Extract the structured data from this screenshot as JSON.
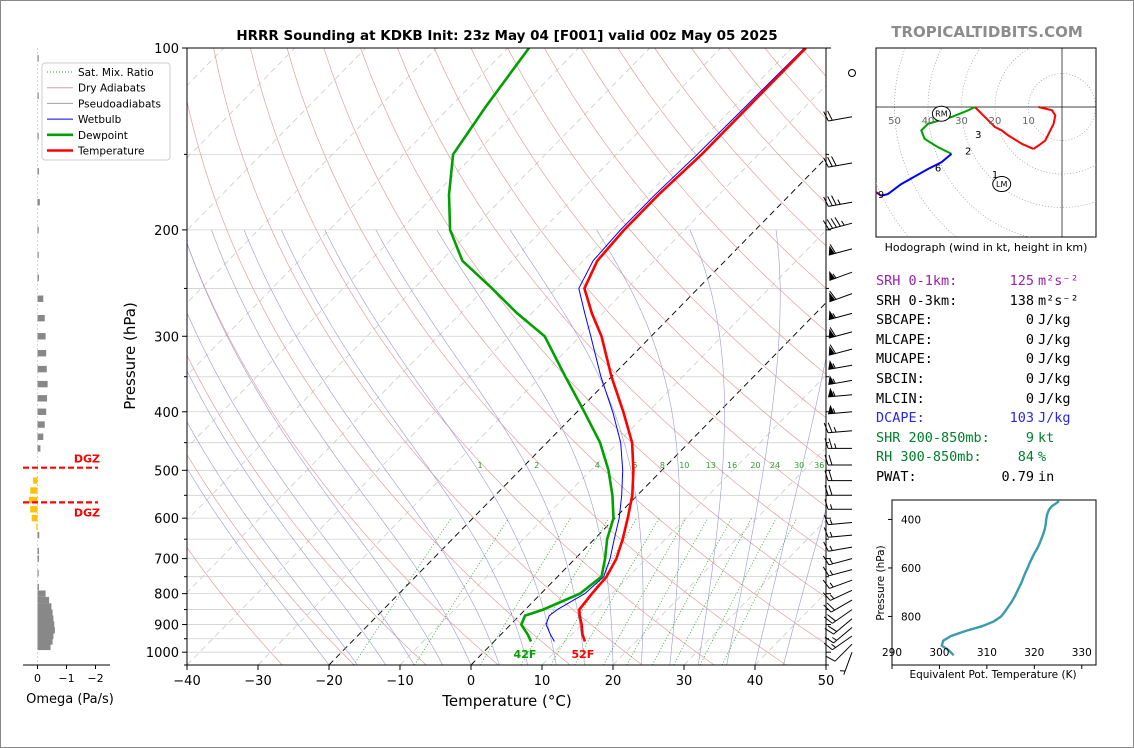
{
  "title": "HRRR Sounding at KDKB Init: 23z May 04 [F001] valid 00z May 05 2025",
  "watermark": "TROPICALTIDBITS.COM",
  "chart_data": [
    {
      "type": "line",
      "name": "skewt",
      "xlabel": "Temperature (°C)",
      "ylabel": "Pressure (hPa)",
      "xlim": [
        -40,
        50
      ],
      "ylim_hpa": [
        1050,
        100
      ],
      "y_scale": "log",
      "x_ticks": [
        "−40",
        "−30",
        "−20",
        "−10",
        "0",
        "10",
        "20",
        "30",
        "40",
        "50"
      ],
      "y_ticks": [
        "100",
        "200",
        "300",
        "400",
        "500",
        "600",
        "700",
        "800",
        "900",
        "1000"
      ],
      "legend_position": "top-left",
      "legend": [
        {
          "label": "Sat. Mix. Ratio",
          "color": "#2ca02c",
          "style": "dotted"
        },
        {
          "label": "Dry Adiabats",
          "color": "#d9a0a0",
          "style": "solid"
        },
        {
          "label": "Pseudoadiabats",
          "color": "#a0a0a0",
          "style": "solid"
        },
        {
          "label": "Wetbulb",
          "color": "#0000ff",
          "style": "solid"
        },
        {
          "label": "Dewpoint",
          "color": "#00a000",
          "style": "solid"
        },
        {
          "label": "Temperature",
          "color": "#ff0000",
          "style": "solid"
        }
      ],
      "mixing_ratio_labels": [
        "1",
        "2",
        "4",
        "6",
        "8",
        "10",
        "13",
        "16",
        "20",
        "24",
        "30",
        "36"
      ],
      "temperature": [
        [
          960,
          12.8
        ],
        [
          935,
          11.5
        ],
        [
          900,
          10
        ],
        [
          870,
          8.5
        ],
        [
          850,
          7.6
        ],
        [
          800,
          7.2
        ],
        [
          750,
          6.9
        ],
        [
          700,
          5.8
        ],
        [
          650,
          4.0
        ],
        [
          600,
          1.8
        ],
        [
          550,
          -0.7
        ],
        [
          500,
          -4
        ],
        [
          450,
          -8
        ],
        [
          400,
          -13.5
        ],
        [
          350,
          -20
        ],
        [
          300,
          -27
        ],
        [
          275,
          -31.5
        ],
        [
          250,
          -36
        ],
        [
          225,
          -38
        ],
        [
          200,
          -38.5
        ],
        [
          175,
          -38.5
        ],
        [
          150,
          -38
        ],
        [
          125,
          -38
        ],
        [
          100,
          -38
        ]
      ],
      "dewpoint": [
        [
          960,
          5.2
        ],
        [
          935,
          3.8
        ],
        [
          900,
          1.5
        ],
        [
          870,
          0.8
        ],
        [
          850,
          2.5
        ],
        [
          800,
          5.5
        ],
        [
          750,
          6.2
        ],
        [
          700,
          4.2
        ],
        [
          650,
          1.8
        ],
        [
          600,
          -0.2
        ],
        [
          550,
          -3.5
        ],
        [
          500,
          -7.5
        ],
        [
          450,
          -12.5
        ],
        [
          400,
          -19
        ],
        [
          350,
          -26.5
        ],
        [
          300,
          -35
        ],
        [
          275,
          -42
        ],
        [
          250,
          -49
        ],
        [
          225,
          -57
        ],
        [
          200,
          -63
        ],
        [
          175,
          -68
        ],
        [
          150,
          -73
        ],
        [
          125,
          -75
        ],
        [
          100,
          -77
        ]
      ],
      "wetbulb": [
        [
          960,
          8.5
        ],
        [
          935,
          7.0
        ],
        [
          900,
          5.0
        ],
        [
          870,
          4.2
        ],
        [
          850,
          4.5
        ],
        [
          800,
          6.2
        ],
        [
          750,
          6.5
        ],
        [
          700,
          4.9
        ],
        [
          650,
          2.8
        ],
        [
          600,
          0.6
        ],
        [
          550,
          -2.2
        ],
        [
          500,
          -5.5
        ],
        [
          450,
          -9.6
        ],
        [
          400,
          -15
        ],
        [
          350,
          -21.5
        ],
        [
          300,
          -28.5
        ],
        [
          275,
          -32.5
        ],
        [
          250,
          -36.8
        ],
        [
          225,
          -38.6
        ],
        [
          200,
          -39
        ],
        [
          175,
          -39
        ],
        [
          150,
          -38.6
        ],
        [
          125,
          -38.4
        ],
        [
          100,
          -38.2
        ]
      ],
      "surface_labels": {
        "dewpoint": "42F",
        "temperature": "52F"
      }
    },
    {
      "type": "bar",
      "name": "omega",
      "xlabel": "Omega (Pa/s)",
      "x_ticks": [
        "0",
        "−1",
        "−2"
      ],
      "xlim": [
        0.5,
        -2.5
      ],
      "dgz_label": "DGZ",
      "dgz_hpa": [
        495,
        565
      ],
      "values": [
        [
          980,
          -0.45
        ],
        [
          960,
          -0.52
        ],
        [
          940,
          -0.55
        ],
        [
          920,
          -0.6
        ],
        [
          900,
          -0.58
        ],
        [
          880,
          -0.55
        ],
        [
          860,
          -0.52
        ],
        [
          840,
          -0.48
        ],
        [
          820,
          -0.4
        ],
        [
          800,
          -0.28
        ],
        [
          780,
          -0.05
        ],
        [
          740,
          -0.04
        ],
        [
          700,
          -0.05
        ],
        [
          680,
          -0.05
        ],
        [
          640,
          -0.06
        ],
        [
          620,
          0.04
        ],
        [
          600,
          0.2
        ],
        [
          580,
          0.25
        ],
        [
          560,
          0.3
        ],
        [
          540,
          0.25
        ],
        [
          520,
          0.15
        ],
        [
          460,
          -0.1
        ],
        [
          440,
          -0.2
        ],
        [
          420,
          -0.25
        ],
        [
          400,
          -0.3
        ],
        [
          380,
          -0.33
        ],
        [
          360,
          -0.35
        ],
        [
          340,
          -0.32
        ],
        [
          320,
          -0.3
        ],
        [
          300,
          -0.28
        ],
        [
          280,
          -0.25
        ],
        [
          260,
          -0.2
        ],
        [
          240,
          -0.05
        ],
        [
          220,
          -0.04
        ],
        [
          200,
          -0.03
        ],
        [
          180,
          -0.08
        ],
        [
          160,
          -0.05
        ],
        [
          140,
          -0.04
        ],
        [
          120,
          -0.03
        ],
        [
          104,
          -0.03
        ]
      ]
    },
    {
      "type": "line",
      "name": "hodograph",
      "xlabel": "Hodograph (wind in kt, height in km)",
      "ring_labels": [
        "50",
        "40",
        "30",
        "20",
        "10"
      ],
      "height_labels": [
        "1",
        "2",
        "3",
        "6",
        "9"
      ],
      "storm_motion": [
        "RM",
        "LM"
      ],
      "segments": [
        {
          "color": "#ff0000",
          "points": [
            [
              -7,
              0
            ],
            [
              -3,
              -1
            ],
            [
              -2,
              -2.5
            ],
            [
              -2.5,
              -5
            ],
            [
              -4,
              -8
            ],
            [
              -5,
              -10
            ],
            [
              -7,
              -11.5
            ],
            [
              -8.5,
              -12.5
            ]
          ]
        },
        {
          "color": "#ff0000",
          "points": [
            [
              -8.5,
              -12.5
            ],
            [
              -12,
              -11
            ],
            [
              -16,
              -8.5
            ],
            [
              -18,
              -7
            ],
            [
              -20,
              -6
            ],
            [
              -23.5,
              -2.5
            ],
            [
              -26,
              0
            ]
          ]
        },
        {
          "color": "#00a000",
          "points": [
            [
              -26,
              0
            ],
            [
              -28,
              -1
            ],
            [
              -33,
              -3
            ],
            [
              -40,
              -5
            ],
            [
              -42,
              -7
            ],
            [
              -41,
              -9.5
            ],
            [
              -37,
              -12
            ],
            [
              -33,
              -14
            ]
          ]
        },
        {
          "color": "#0000ff",
          "points": [
            [
              -33,
              -14
            ],
            [
              -36,
              -16.5
            ],
            [
              -40,
              -18.5
            ],
            [
              -48,
              -23
            ],
            [
              -52,
              -26
            ],
            [
              -54,
              -26.5
            ]
          ]
        },
        {
          "color": "#800080",
          "points": [
            [
              -54,
              -26.5
            ],
            [
              -56,
              -25
            ]
          ]
        }
      ],
      "rm_pos": [
        -36,
        -2
      ],
      "lm_pos": [
        -18,
        -23
      ]
    },
    {
      "type": "line",
      "name": "theta_e",
      "xlabel": "Equivalent Pot. Temperature (K)",
      "ylabel": "Pressure (hPa)",
      "xlim": [
        290,
        333
      ],
      "x_ticks": [
        "290",
        "300",
        "310",
        "320",
        "330"
      ],
      "y_ticks": [
        "400",
        "600",
        "800"
      ],
      "values": [
        [
          960,
          303
        ],
        [
          940,
          302
        ],
        [
          920,
          300.5
        ],
        [
          900,
          300.8
        ],
        [
          880,
          302.5
        ],
        [
          860,
          305.5
        ],
        [
          840,
          309
        ],
        [
          820,
          311.5
        ],
        [
          800,
          313
        ],
        [
          780,
          313.8
        ],
        [
          760,
          314.5
        ],
        [
          740,
          315.2
        ],
        [
          720,
          315.8
        ],
        [
          700,
          316.3
        ],
        [
          680,
          316.8
        ],
        [
          660,
          317.3
        ],
        [
          640,
          317.7
        ],
        [
          620,
          318.1
        ],
        [
          600,
          318.6
        ],
        [
          580,
          319
        ],
        [
          560,
          319.5
        ],
        [
          540,
          320
        ],
        [
          520,
          320.6
        ],
        [
          500,
          321.1
        ],
        [
          480,
          321.5
        ],
        [
          460,
          321.9
        ],
        [
          440,
          322.2
        ],
        [
          420,
          322.4
        ],
        [
          400,
          322.5
        ],
        [
          380,
          322.7
        ],
        [
          360,
          323.1
        ],
        [
          345,
          323.7
        ],
        [
          335,
          324.5
        ],
        [
          325,
          325.2
        ]
      ]
    }
  ],
  "indices": [
    {
      "label": "SRH 0-1km:",
      "value": "125",
      "unit": "m²s⁻²",
      "color": "#9a1fb0"
    },
    {
      "label": "SRH 0-3km:",
      "value": "138",
      "unit": "m²s⁻²",
      "color": "#000000"
    },
    {
      "label": "SBCAPE:",
      "value": "0",
      "unit": "J/kg",
      "color": "#000000"
    },
    {
      "label": "MLCAPE:",
      "value": "0",
      "unit": "J/kg",
      "color": "#000000"
    },
    {
      "label": "MUCAPE:",
      "value": "0",
      "unit": "J/kg",
      "color": "#000000"
    },
    {
      "label": "SBCIN:",
      "value": "0",
      "unit": "J/kg",
      "color": "#000000"
    },
    {
      "label": "MLCIN:",
      "value": "0",
      "unit": "J/kg",
      "color": "#000000"
    },
    {
      "label": "DCAPE:",
      "value": "103",
      "unit": "J/kg",
      "color": "#2a2ae0"
    },
    {
      "label": "SHR 200-850mb:",
      "value": "9",
      "unit": "kt",
      "color": "#00802a"
    },
    {
      "label": "RH 300-850mb:",
      "value": "84",
      "unit": "%",
      "color": "#00802a"
    },
    {
      "label": "PWAT:",
      "value": "0.79",
      "unit": "in",
      "color": "#000000"
    }
  ],
  "wind_barbs": [
    [
      1000,
      200,
      5
    ],
    [
      970,
      225,
      10
    ],
    [
      940,
      235,
      15
    ],
    [
      910,
      230,
      15
    ],
    [
      880,
      230,
      20
    ],
    [
      850,
      235,
      20
    ],
    [
      820,
      240,
      20
    ],
    [
      790,
      245,
      15
    ],
    [
      760,
      250,
      15
    ],
    [
      730,
      255,
      15
    ],
    [
      700,
      255,
      15
    ],
    [
      670,
      260,
      15
    ],
    [
      640,
      265,
      15
    ],
    [
      610,
      265,
      15
    ],
    [
      580,
      270,
      15
    ],
    [
      550,
      270,
      20
    ],
    [
      520,
      270,
      20
    ],
    [
      490,
      270,
      20
    ],
    [
      460,
      270,
      25
    ],
    [
      430,
      265,
      25
    ],
    [
      400,
      265,
      55
    ],
    [
      375,
      265,
      55
    ],
    [
      355,
      260,
      55
    ],
    [
      335,
      260,
      55
    ],
    [
      315,
      255,
      60
    ],
    [
      295,
      255,
      60
    ],
    [
      275,
      255,
      55
    ],
    [
      255,
      250,
      60
    ],
    [
      235,
      250,
      55
    ],
    [
      215,
      255,
      60
    ],
    [
      195,
      255,
      45
    ],
    [
      180,
      260,
      35
    ],
    [
      155,
      260,
      30
    ],
    [
      130,
      260,
      20
    ],
    [
      110,
      0,
      0
    ]
  ],
  "colors": {
    "temperature": "#ff0000",
    "dewpoint": "#00a000",
    "wetbulb": "#0000ff",
    "theta_e": "#3a9ab0",
    "omega_up": "#888888",
    "omega_down": "#ffc107",
    "dgz": "#ff0000"
  }
}
